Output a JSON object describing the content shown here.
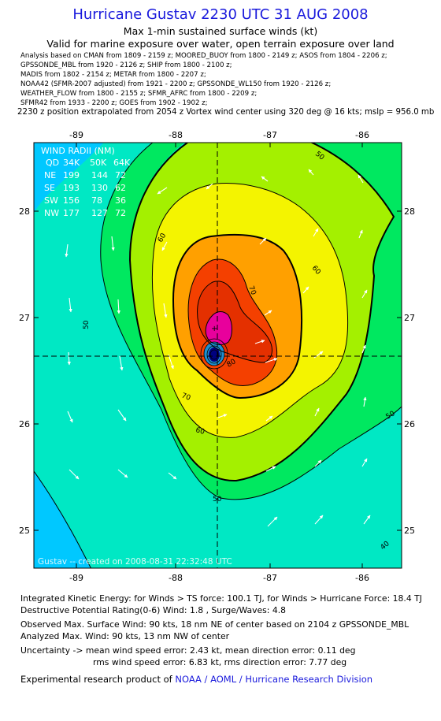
{
  "header": {
    "title": "Hurricane Gustav 2230 UTC 31 AUG 2008",
    "subtitle": "Max 1-min sustained surface winds (kt)",
    "validity": "Valid for marine exposure over water, open terrain exposure over land",
    "sources": [
      "Analysis based on  CMAN from 1809 - 2159 z;  MOORED_BUOY from 1800 - 2149 z;  ASOS from 1804 - 2206 z;",
      "GPSSONDE_MBL from 1920 - 2126 z;  SHIP from 1800 - 2100 z;",
      "MADIS from 1802 - 2154 z;  METAR from 1800 - 2207 z;",
      "NOAA42 (SFMR-2007 adjusted) from 1921 - 2200 z;  GPSSONDE_WL150 from 1920 - 2126 z;",
      "WEATHER_FLOW from 1800 - 2155 z;  SFMR_AFRC from 1800 - 2209 z;",
      "SFMR42 from 1933 - 2200 z;  GOES from 1902 - 1902 z;"
    ],
    "position_note": "2230 z position extrapolated from 2054 z Vortex wind center using 320 deg @ 16 kts; mslp = 956.0 mb"
  },
  "map": {
    "x_ticks": [
      "-89",
      "-88",
      "-87",
      "-86"
    ],
    "y_ticks": [
      "28",
      "27",
      "26",
      "25"
    ],
    "contour_labels": [
      "50",
      "50",
      "60",
      "60",
      "60",
      "70",
      "70",
      "80",
      "50",
      "40",
      "50",
      "60"
    ],
    "center_lon": -87.53,
    "center_lat": 26.65,
    "wind_radii": {
      "title": "WIND RADII (NM)",
      "header": [
        "QD",
        "34K",
        "50K",
        "64K"
      ],
      "rows": [
        [
          "NE",
          "199",
          "144",
          "72"
        ],
        [
          "SE",
          "193",
          "130",
          "62"
        ],
        [
          "SW",
          "156",
          "78",
          "36"
        ],
        [
          "NW",
          "177",
          "127",
          "72"
        ]
      ]
    },
    "watermark": "Gustav  --  created on 2008-08-31  22:32:48  UTC",
    "colors": {
      "below_40": "#00c8ff",
      "w40_50": "#00e8c4",
      "w50_60": "#00e860",
      "w60_70": "#a4f000",
      "w70_80": "#f4f400",
      "w80_90": "#ffa000",
      "w90_100": "#f44000",
      "max": "#e8009c",
      "eye": "#000080",
      "border": "#000000"
    }
  },
  "footer": {
    "ike": "Integrated Kinetic Energy:  for Winds > TS force: 100.1 TJ,  for Winds > Hurricane Force: 18.4 TJ",
    "dpr": "Destructive Potential Rating(0-6)   Wind: 1.8 , Surge/Waves: 4.8",
    "obs_max": "Observed Max. Surface Wind: 90 kts, 18 nm NE of center based on 2104 z GPSSONDE_MBL",
    "analyzed_max": "Analyzed Max. Wind: 90 kts, 13 nm NW of center",
    "uncertainty_mean": "Uncertainty -> mean wind speed error: 2.43 kt,   mean direction error: 0.11 deg",
    "uncertainty_rms": "rms wind speed error: 6.83 kt,   rms direction error: 7.77 deg",
    "credit_prefix": "Experimental research product of ",
    "credit_link": "NOAA / AOML / Hurricane Research Division"
  }
}
